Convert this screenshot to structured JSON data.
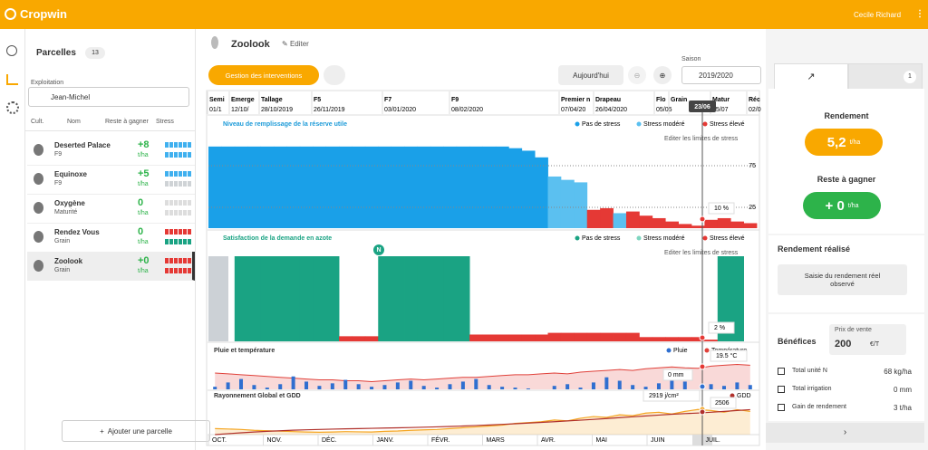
{
  "app": {
    "brand": "Cropwin",
    "user": "Cecile Richard"
  },
  "sidebar": {
    "title": "Parcelles",
    "count": "13",
    "farm_label": "Exploitation",
    "farm": "Jean-Michel",
    "columns": [
      "Cult.",
      "Nom",
      "Reste à gagner",
      "Stress"
    ],
    "parcels": [
      {
        "name": "Deserted Palace",
        "stage": "F9",
        "gain": "+8",
        "unit": "t/ha",
        "water": "#3fb0ef",
        "nitrogen": "#3fb0ef"
      },
      {
        "name": "Equinoxe",
        "stage": "F9",
        "gain": "+5",
        "unit": "t/ha",
        "water": "#3fb0ef",
        "nitrogen": "#cfd3d6"
      },
      {
        "name": "Oxygène",
        "stage": "Maturité",
        "gain": "0",
        "unit": "t/ha",
        "water": "#dddddd",
        "nitrogen": "#dddddd"
      },
      {
        "name": "Rendez Vous",
        "stage": "Grain",
        "gain": "0",
        "unit": "t/ha",
        "water": "#e53935",
        "nitrogen": "#1aa383"
      },
      {
        "name": "Zoolook",
        "stage": "Grain",
        "gain": "+0",
        "unit": "t/ha",
        "water": "#e53935",
        "nitrogen": "#e53935"
      }
    ],
    "add_button": "Ajouter une parcelle"
  },
  "header": {
    "parcel": "Zoolook",
    "edit": "Editer",
    "interventions": "Gestion des interventions",
    "today": "Aujourd'hui",
    "season_label": "Saison",
    "season": "2019/2020"
  },
  "stages": [
    {
      "name": "Semi",
      "date": "01/1"
    },
    {
      "name": "Emerge",
      "date": "12/10/"
    },
    {
      "name": "Tallage",
      "date": "28/10/2019"
    },
    {
      "name": "F5",
      "date": "26/11/2019"
    },
    {
      "name": "F7",
      "date": "03/01/2020"
    },
    {
      "name": "F9",
      "date": "08/02/2020"
    },
    {
      "name": "Premier n",
      "date": "07/04/20"
    },
    {
      "name": "Drapeau",
      "date": "26/04/2020"
    },
    {
      "name": "Flo",
      "date": "05/05"
    },
    {
      "name": "Grain"
    },
    {
      "name": "Matur",
      "date": "05/07"
    },
    {
      "name": "Réc",
      "date": "02/0"
    }
  ],
  "cursor_date": "23/06",
  "months": [
    "OCT.",
    "NOV.",
    "DÉC.",
    "JANV.",
    "FÉVR.",
    "MARS",
    "AVR.",
    "MAI",
    "JUIN",
    "JUIL."
  ],
  "charts": [
    {
      "type": "bar",
      "title": "Niveau de remplissage de la réserve utile",
      "edit_link": "Editer les limites de stress",
      "cursor_label": "10 %",
      "legend": [
        {
          "name": "Pas de stress",
          "color": "#1aa0e8"
        },
        {
          "name": "Stress modéré",
          "color": "#5bc0f0"
        },
        {
          "name": "Stress élevé",
          "color": "#e53935"
        }
      ],
      "ylim": [
        0,
        100
      ],
      "yticks": [
        25,
        75
      ],
      "values": [
        98,
        98,
        98,
        98,
        98,
        98,
        98,
        98,
        98,
        98,
        98,
        98,
        98,
        98,
        98,
        98,
        98,
        98,
        98,
        98,
        98,
        98,
        98,
        96,
        93,
        85,
        62,
        58,
        55,
        22,
        24,
        18,
        20,
        15,
        12,
        8,
        5,
        3,
        10,
        12,
        8,
        6
      ],
      "levels": [
        0,
        0,
        0,
        0,
        0,
        0,
        0,
        0,
        0,
        0,
        0,
        0,
        0,
        0,
        0,
        0,
        0,
        0,
        0,
        0,
        0,
        0,
        0,
        0,
        0,
        0,
        1,
        1,
        1,
        2,
        2,
        1,
        2,
        2,
        2,
        2,
        2,
        2,
        2,
        2,
        2,
        2
      ]
    },
    {
      "type": "bar",
      "title": "Satisfaction de la demande en azote",
      "edit_link": "Editer les limites de stress",
      "cursor_label": "2 %",
      "marker": "N",
      "legend": [
        {
          "name": "Pas de stress",
          "color": "#1aa383"
        },
        {
          "name": "Stress modéré",
          "color": "#7fd6c0"
        },
        {
          "name": "Stress élevé",
          "color": "#e53935"
        }
      ],
      "ylim": [
        0,
        100
      ],
      "values": [
        null,
        null,
        100,
        100,
        100,
        100,
        100,
        100,
        100,
        100,
        6,
        6,
        6,
        100,
        100,
        100,
        100,
        100,
        100,
        100,
        8,
        8,
        8,
        8,
        8,
        8,
        10,
        10,
        10,
        10,
        10,
        10,
        10,
        5,
        5,
        5,
        5,
        5,
        2,
        100,
        100,
        null
      ],
      "levels": [
        0,
        0,
        0,
        0,
        0,
        0,
        0,
        0,
        0,
        0,
        2,
        2,
        2,
        0,
        0,
        0,
        0,
        0,
        0,
        0,
        2,
        2,
        2,
        2,
        2,
        2,
        2,
        2,
        2,
        2,
        2,
        2,
        2,
        2,
        2,
        2,
        2,
        2,
        2,
        0,
        0,
        0
      ]
    },
    {
      "type": "bar_line",
      "title": "Pluie et température",
      "cursor_label": "19.5 °C",
      "rain_label": "0 mm",
      "ylim": [
        0,
        40
      ],
      "y2lim": [
        -5,
        35
      ],
      "series": [
        {
          "name": "Pluie",
          "color": "#2f6fd0",
          "values": [
            3,
            8,
            12,
            5,
            2,
            6,
            15,
            9,
            4,
            7,
            11,
            6,
            3,
            5,
            8,
            10,
            4,
            2,
            6,
            9,
            12,
            5,
            3,
            2,
            1,
            0,
            4,
            6,
            2,
            8,
            14,
            10,
            5,
            3,
            7,
            12,
            9,
            0,
            6,
            4,
            8,
            5
          ]
        },
        {
          "name": "Température",
          "color": "#e0413a",
          "axis": "y2",
          "values": [
            14,
            13,
            12,
            11,
            10,
            9,
            8,
            7,
            6,
            6,
            5,
            5,
            4,
            5,
            6,
            7,
            6,
            7,
            8,
            9,
            9,
            10,
            11,
            12,
            12,
            13,
            14,
            13,
            15,
            16,
            17,
            18,
            17,
            19,
            20,
            21,
            20,
            19.5,
            22,
            23,
            24,
            23
          ]
        }
      ]
    },
    {
      "type": "line",
      "title": "Rayonnement Global et GDD",
      "cursor_label": "2919 j/cm²",
      "gdd_label": "2506",
      "ylim": [
        0,
        4000
      ],
      "series": [
        {
          "name": "Rayonnement Global",
          "color": "#f5a623",
          "values": [
            700,
            650,
            600,
            500,
            450,
            400,
            350,
            300,
            280,
            300,
            350,
            320,
            300,
            380,
            420,
            500,
            550,
            600,
            700,
            800,
            900,
            1000,
            1100,
            1300,
            1400,
            1500,
            1700,
            1600,
            1900,
            2100,
            2000,
            2300,
            2200,
            2500,
            2600,
            2400,
            2700,
            2919,
            2800,
            2600,
            2900,
            2700
          ]
        },
        {
          "name": "GDD",
          "color": "#b0302a",
          "values": [
            0,
            110,
            210,
            300,
            380,
            450,
            510,
            560,
            600,
            640,
            670,
            700,
            730,
            760,
            790,
            820,
            860,
            900,
            950,
            1000,
            1060,
            1120,
            1190,
            1260,
            1340,
            1420,
            1500,
            1590,
            1680,
            1770,
            1870,
            1970,
            2070,
            2170,
            2270,
            2370,
            2440,
            2506,
            2600,
            2700,
            2800,
            2900
          ]
        }
      ]
    }
  ],
  "panel": {
    "tab_badge": "1",
    "yield_title": "Rendement",
    "yield": "5,2",
    "yield_unit": "t/ha",
    "remaining_title": "Reste à gagner",
    "remaining": "+ 0",
    "remaining_unit": "t/ha",
    "realized_title": "Rendement réalisé",
    "realized_button": "Saisie du rendement réel observé",
    "benefits_title": "Bénéfices",
    "price_label": "Prix de vente",
    "price": "200",
    "price_unit": "€/T",
    "rows": [
      {
        "label": "Total unité N",
        "value": "68 kg/ha"
      },
      {
        "label": "Total irrigation",
        "value": "0 mm"
      },
      {
        "label": "Gain de rendement",
        "value": "3 t/ha"
      }
    ]
  }
}
